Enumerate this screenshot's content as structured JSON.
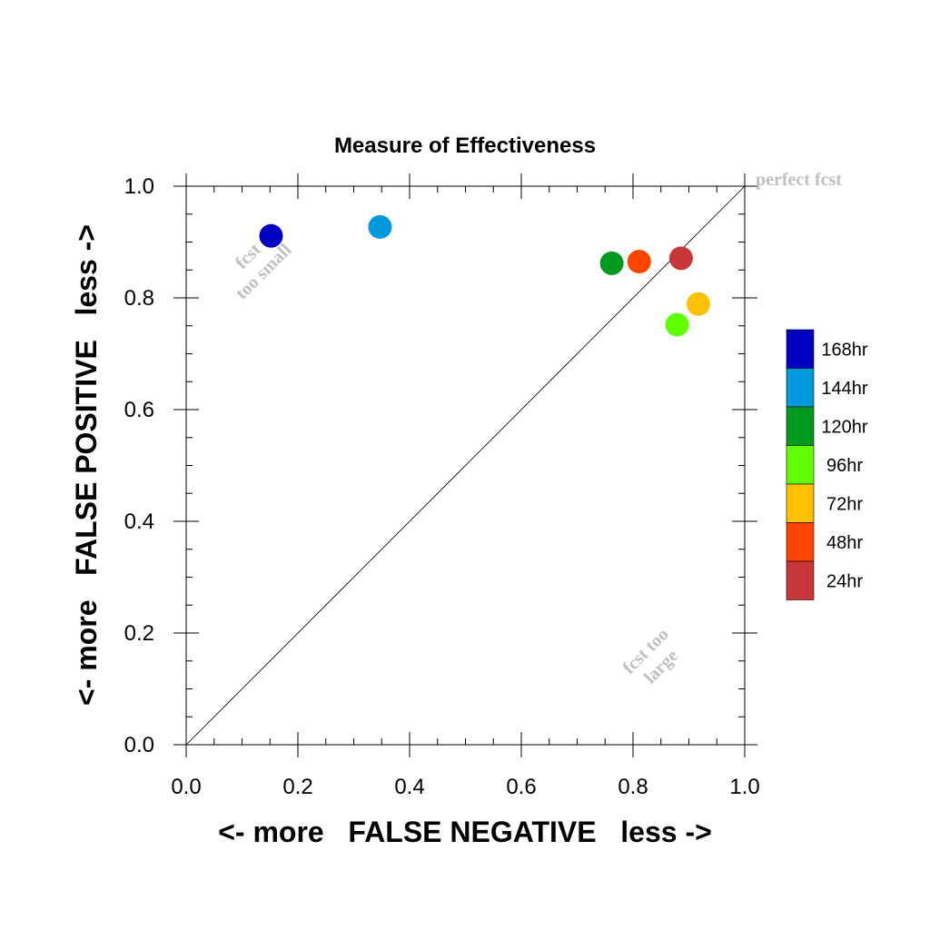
{
  "chart_data": {
    "type": "scatter",
    "title": "Measure of Effectiveness",
    "xlabel": "<- more   FALSE NEGATIVE   less ->",
    "ylabel": "<- more   FALSE POSITIVE   less ->",
    "xlim": [
      0.0,
      1.0
    ],
    "ylim": [
      0.0,
      1.0
    ],
    "x_ticks": [
      "0.0",
      "0.2",
      "0.4",
      "0.6",
      "0.8",
      "1.0"
    ],
    "y_ticks": [
      "0.0",
      "0.2",
      "0.4",
      "0.6",
      "0.8",
      "1.0"
    ],
    "grid": false,
    "legend_position": "right",
    "reference_line": "diagonal",
    "annotations": {
      "perfect": "perfect fcst",
      "too_small": [
        "fcst",
        "too small"
      ],
      "too_large": [
        "fcst too",
        "large"
      ]
    },
    "series": [
      {
        "name": "168hr",
        "color": "#0000c0",
        "x": 0.152,
        "y": 0.911
      },
      {
        "name": "144hr",
        "color": "#0099dd",
        "x": 0.347,
        "y": 0.927
      },
      {
        "name": "120hr",
        "color": "#009a1e",
        "x": 0.762,
        "y": 0.862
      },
      {
        "name": "96hr",
        "color": "#60ff00",
        "x": 0.879,
        "y": 0.752
      },
      {
        "name": "72hr",
        "color": "#ffc000",
        "x": 0.917,
        "y": 0.789
      },
      {
        "name": "48hr",
        "color": "#ff4500",
        "x": 0.811,
        "y": 0.865
      },
      {
        "name": "24hr",
        "color": "#c83737",
        "x": 0.886,
        "y": 0.871
      }
    ]
  }
}
